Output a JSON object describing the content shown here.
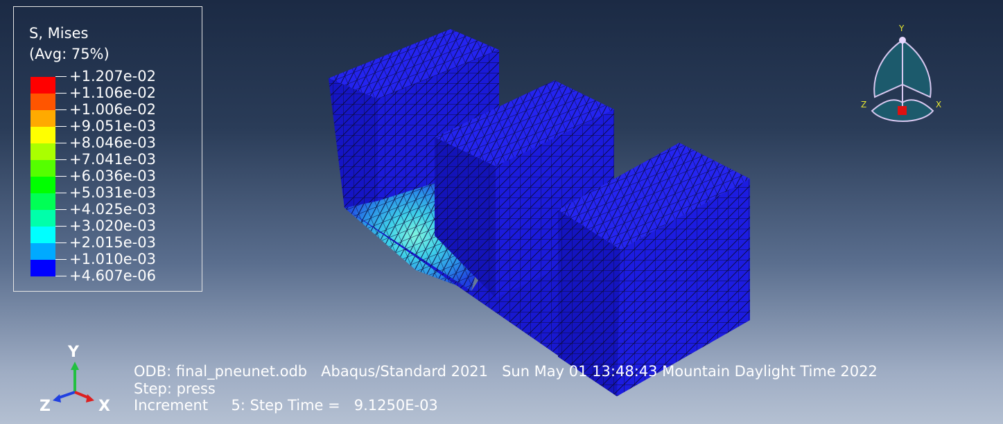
{
  "legend": {
    "title": "S, Mises",
    "subtitle": "(Avg: 75%)",
    "entries": [
      {
        "value": "+1.207e-02",
        "color": "#ff0000"
      },
      {
        "value": "+1.106e-02",
        "color": "#ff5500"
      },
      {
        "value": "+1.006e-02",
        "color": "#ffaa00"
      },
      {
        "value": "+9.051e-03",
        "color": "#ffff00"
      },
      {
        "value": "+8.046e-03",
        "color": "#aaff00"
      },
      {
        "value": "+7.041e-03",
        "color": "#55ff00"
      },
      {
        "value": "+6.036e-03",
        "color": "#00ff00"
      },
      {
        "value": "+5.031e-03",
        "color": "#00ff55"
      },
      {
        "value": "+4.025e-03",
        "color": "#00ffaa"
      },
      {
        "value": "+3.020e-03",
        "color": "#00ffff"
      },
      {
        "value": "+2.015e-03",
        "color": "#00aaff"
      },
      {
        "value": "+1.010e-03",
        "color": "#0055ff"
      },
      {
        "value": "+4.607e-06",
        "color": null
      }
    ],
    "last_band_color": "#0000ff"
  },
  "view_triad": {
    "y": "Y",
    "z": "Z",
    "x": "X"
  },
  "global_triad": {
    "y": "Y",
    "z": "Z",
    "x": "X"
  },
  "info": {
    "odb": "ODB: final_pneunet.odb",
    "solver": "Abaqus/Standard 2021",
    "date": "Sun May 01 13:48:43 Mountain Daylight Time 2022",
    "step": "Step: press",
    "increment_label": "Increment",
    "increment_value": "5: Step Time =",
    "step_time": "9.1250E-03"
  },
  "colors": {
    "mesh_blue": "#1f1fe8",
    "mesh_dark": "#0d0da8",
    "edge": "#0a0a3a",
    "stress_hot": "#3fe0ea"
  }
}
